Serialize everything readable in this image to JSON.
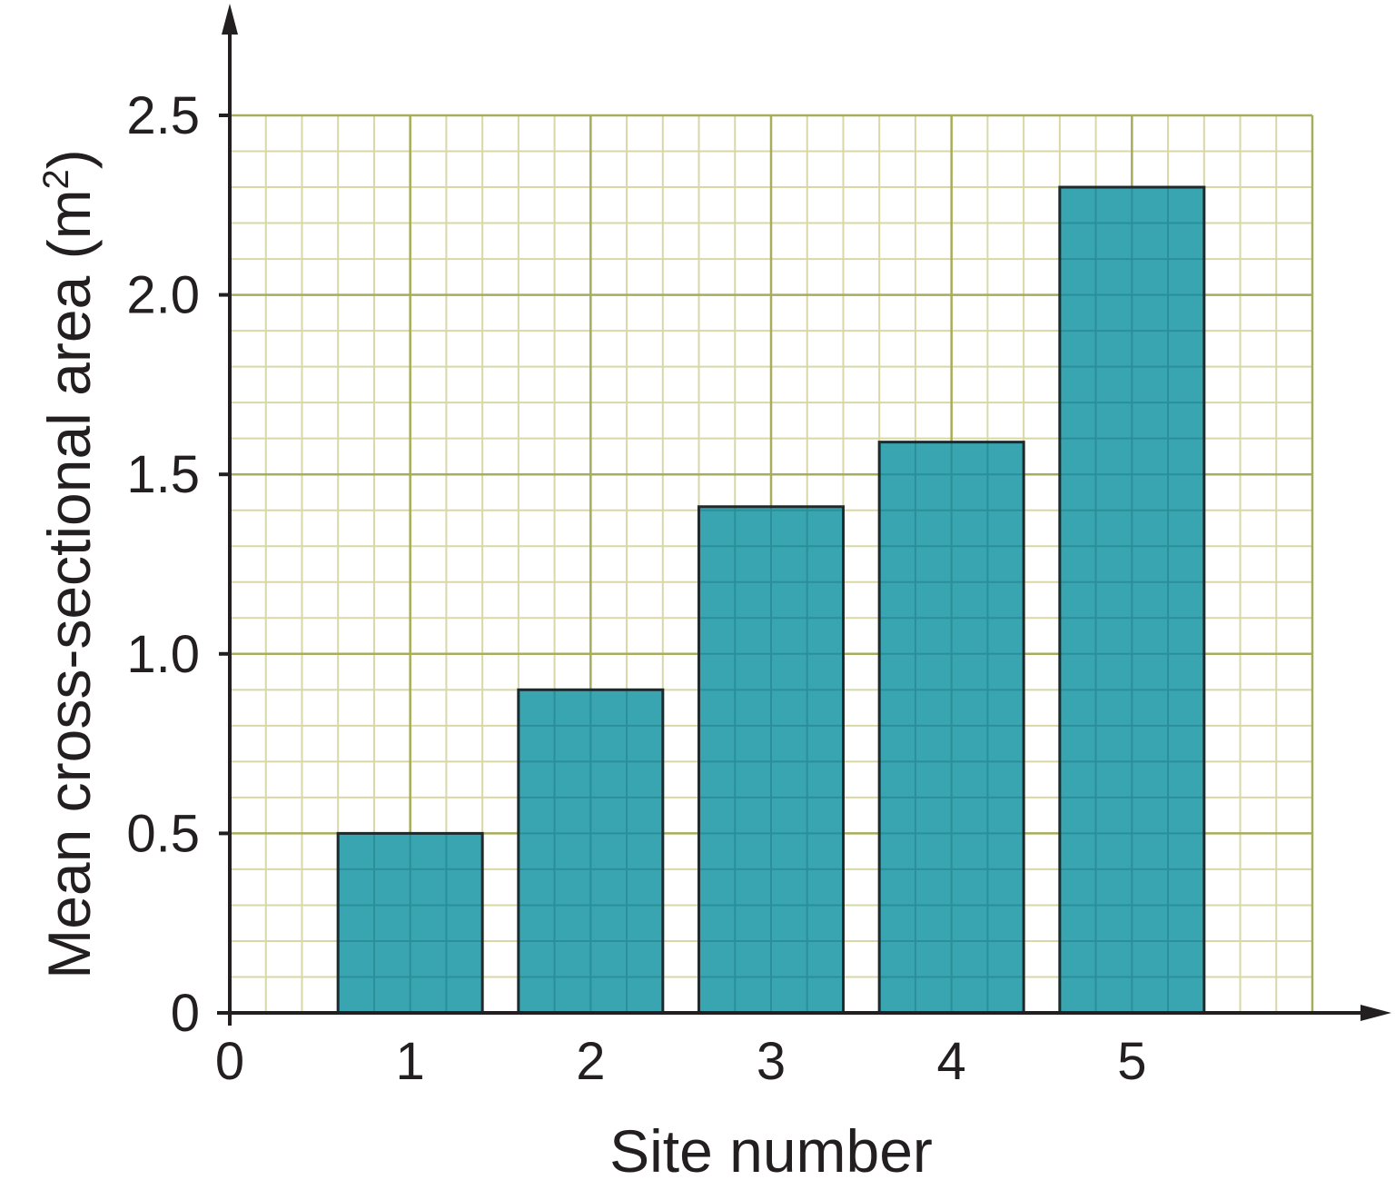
{
  "chart_data": {
    "type": "bar",
    "categories": [
      "1",
      "2",
      "3",
      "4",
      "5"
    ],
    "values": [
      0.5,
      0.9,
      1.41,
      1.59,
      2.3
    ],
    "title": "",
    "xlabel": "Site number",
    "ylabel": "Mean cross-sectional area (m",
    "ylabel_superscript": "2",
    "ylabel_suffix": ")",
    "x_origin_label": "0",
    "ylim": [
      0,
      2.5
    ],
    "yticks": [
      0,
      0.5,
      1.0,
      1.5,
      2.0,
      2.5
    ],
    "ytick_labels": [
      "0",
      "0.5",
      "1.0",
      "1.5",
      "2.0",
      "2.5"
    ],
    "xlim": [
      0,
      6
    ],
    "grid": true,
    "legend": "none",
    "colors": {
      "bar_fill": "#39a5b0",
      "bar_grid_line": "#2a8f98",
      "bar_edge": "#1e2a2c",
      "grid_minor": "#d8d8a6",
      "grid_major": "#a7ad5a",
      "axis": "#231f20",
      "text": "#231f20"
    }
  }
}
